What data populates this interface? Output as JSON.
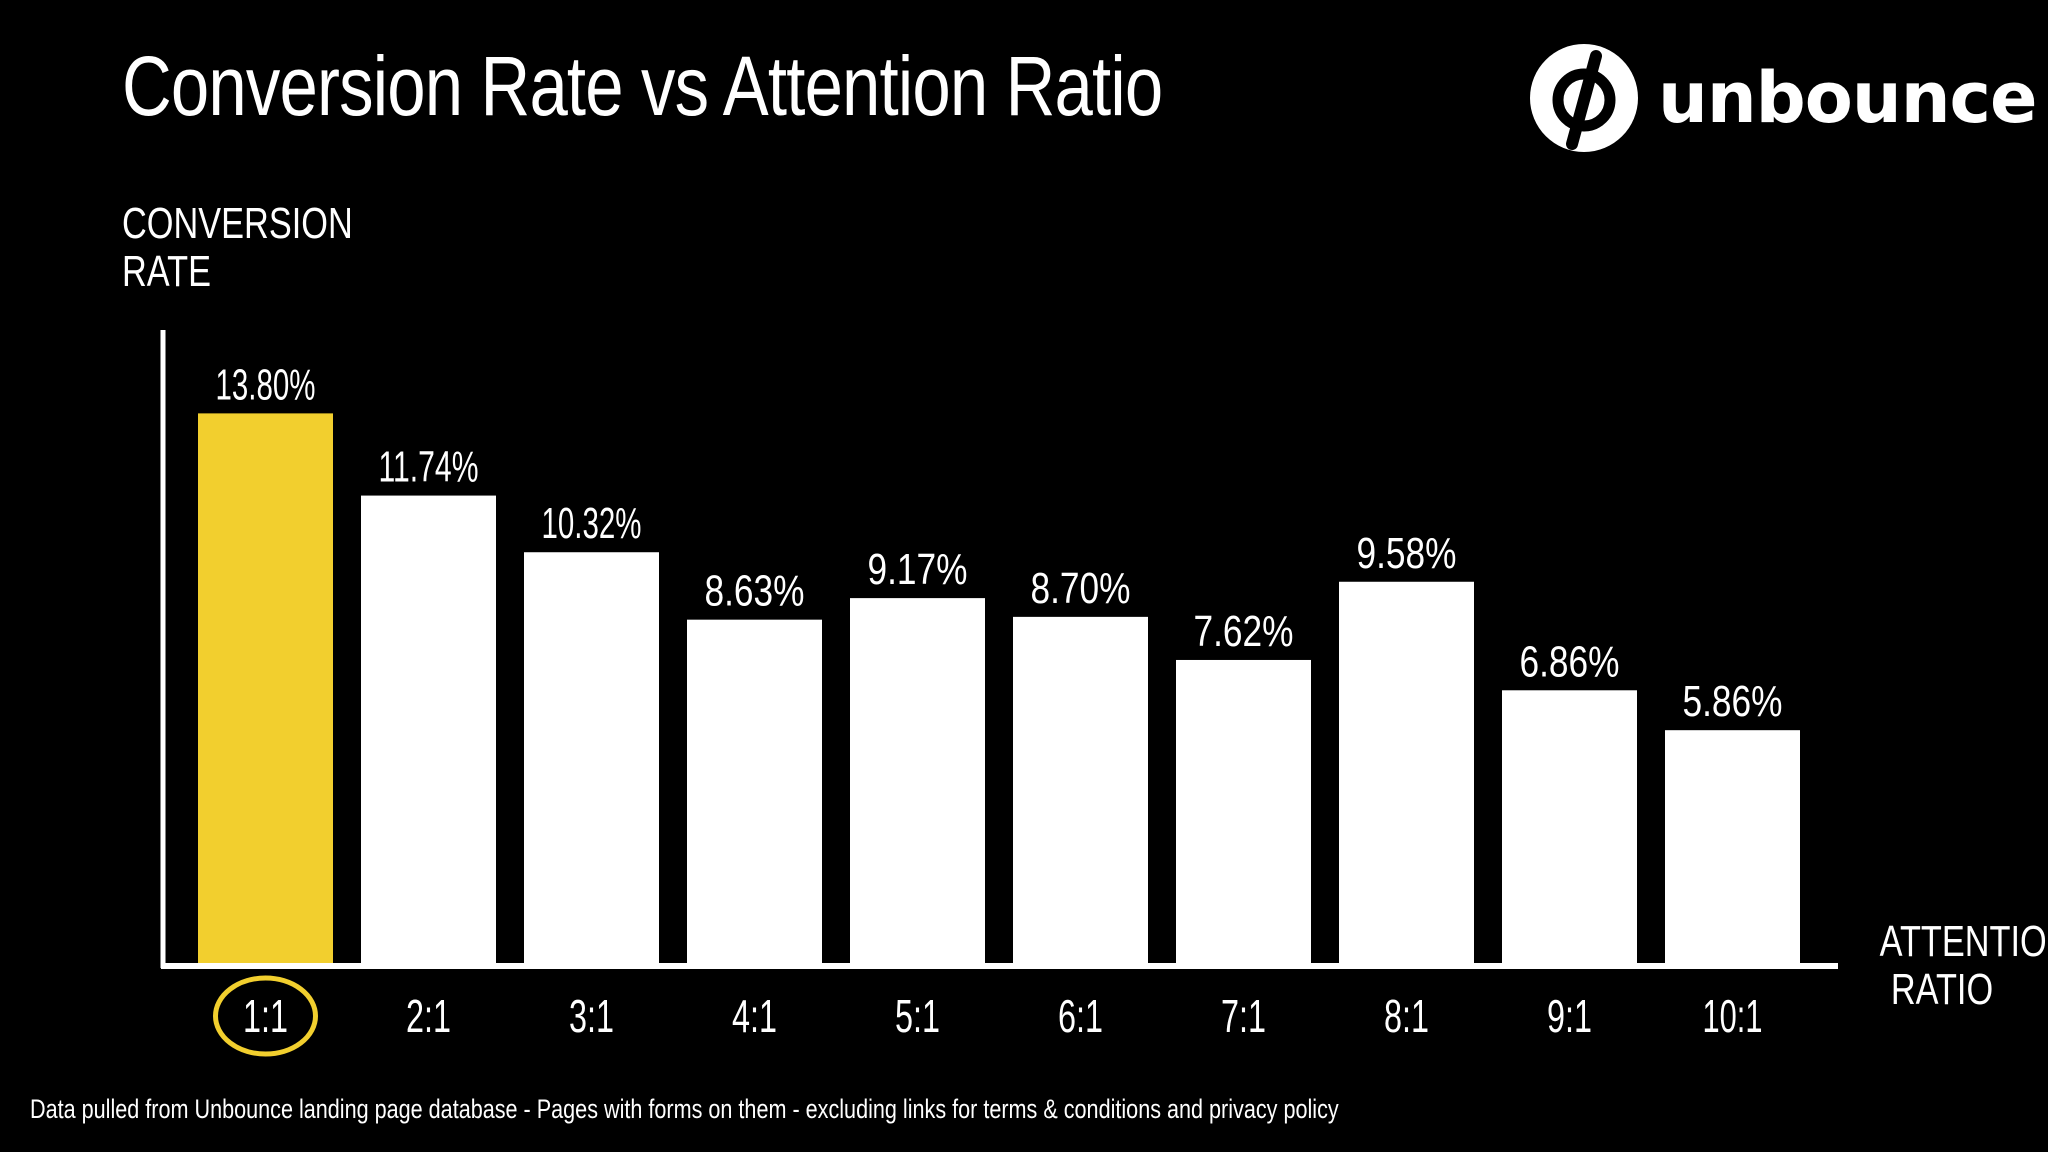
{
  "header": {
    "title": "Conversion Rate vs Attention Ratio"
  },
  "brand": {
    "name": "unbounce",
    "logo_icon": "unbounce-logo-icon"
  },
  "colors": {
    "background": "#000000",
    "bar": "#ffffff",
    "highlight_bar": "#f2cf2e",
    "highlight_ring": "#f2cf2e",
    "text": "#ffffff"
  },
  "chart_data": {
    "type": "bar",
    "categories": [
      "1:1",
      "2:1",
      "3:1",
      "4:1",
      "5:1",
      "6:1",
      "7:1",
      "8:1",
      "9:1",
      "10:1"
    ],
    "values": [
      13.8,
      11.74,
      10.32,
      8.63,
      9.17,
      8.7,
      7.62,
      9.58,
      6.86,
      5.86
    ],
    "data_labels": [
      "13.80%",
      "11.74%",
      "10.32%",
      "8.63%",
      "9.17%",
      "8.70%",
      "7.62%",
      "9.58%",
      "6.86%",
      "5.86%"
    ],
    "highlight_category": "1:1",
    "ylabel": "CONVERSION\nRATE",
    "xlabel": "ATTENTION\nRATIO",
    "ylim": [
      0,
      14.5
    ],
    "grid": false,
    "legend": "none"
  },
  "footnote": "Data pulled from Unbounce landing page database - Pages with forms on them - excluding links for terms & conditions and privacy policy"
}
